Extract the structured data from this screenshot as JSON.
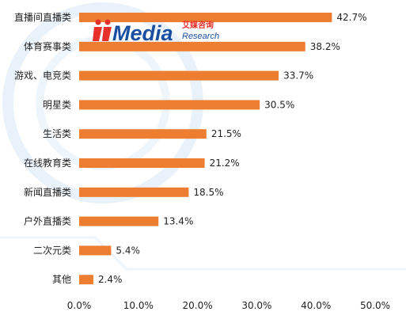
{
  "chart_data": {
    "type": "bar",
    "orientation": "horizontal",
    "categories": [
      "直播间直播类",
      "体育赛事类",
      "游戏、电竞类",
      "明星类",
      "生活类",
      "在线教育类",
      "新闻直播类",
      "户外直播类",
      "二次元类",
      "其他"
    ],
    "values": [
      42.7,
      38.2,
      33.7,
      30.5,
      21.5,
      21.2,
      18.5,
      13.4,
      5.4,
      2.4
    ],
    "data_labels": [
      "42.7%",
      "38.2%",
      "33.7%",
      "30.5%",
      "21.5%",
      "21.2%",
      "18.5%",
      "13.4%",
      "5.4%",
      "2.4%"
    ],
    "xlim": [
      0,
      50
    ],
    "x_ticks": [
      "0.0%",
      "10.0%",
      "20.0%",
      "30.0%",
      "40.0%",
      "50.0%"
    ],
    "title": "",
    "xlabel": "",
    "ylabel": "",
    "grid": false,
    "legend": "none",
    "bar_color": "#ED7D31"
  },
  "watermark": {
    "brand": "iiMedia",
    "brand_cn": "艾媒咨询",
    "brand_sub": "Research",
    "brand_color": "#1a4fa0",
    "accent_color": "#e8302a"
  }
}
